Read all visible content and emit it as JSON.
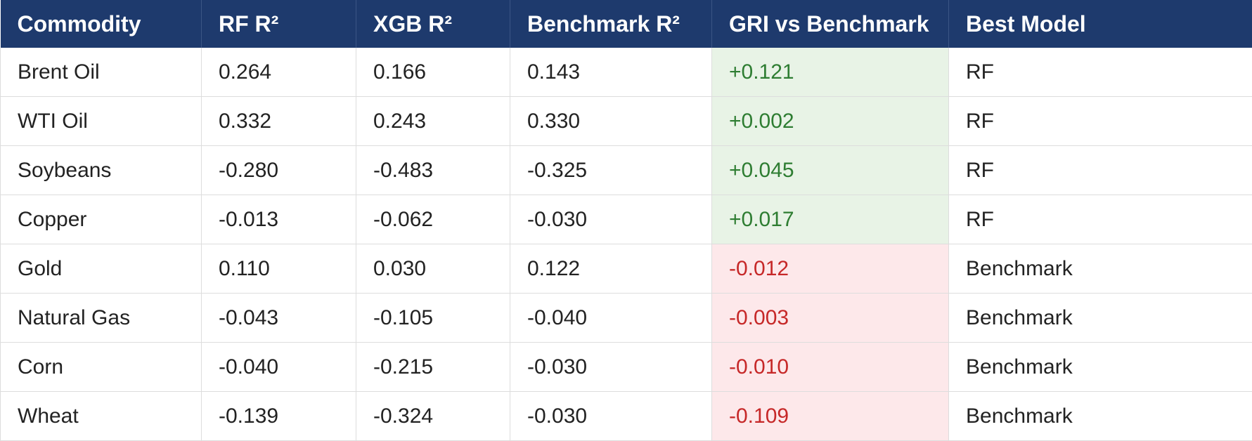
{
  "table": {
    "headers": [
      "Commodity",
      "RF R²",
      "XGB R²",
      "Benchmark R²",
      "GRI vs Benchmark",
      "Best Model"
    ],
    "rows": [
      {
        "commodity": "Brent Oil",
        "rf": "0.264",
        "xgb": "0.166",
        "benchmark": "0.143",
        "gri": "+0.121",
        "best": "RF",
        "sign": "pos"
      },
      {
        "commodity": "WTI Oil",
        "rf": "0.332",
        "xgb": "0.243",
        "benchmark": "0.330",
        "gri": "+0.002",
        "best": "RF",
        "sign": "pos"
      },
      {
        "commodity": "Soybeans",
        "rf": "-0.280",
        "xgb": "-0.483",
        "benchmark": "-0.325",
        "gri": "+0.045",
        "best": "RF",
        "sign": "pos"
      },
      {
        "commodity": "Copper",
        "rf": "-0.013",
        "xgb": "-0.062",
        "benchmark": "-0.030",
        "gri": "+0.017",
        "best": "RF",
        "sign": "pos"
      },
      {
        "commodity": "Gold",
        "rf": "0.110",
        "xgb": "0.030",
        "benchmark": "0.122",
        "gri": "-0.012",
        "best": "Benchmark",
        "sign": "neg"
      },
      {
        "commodity": "Natural Gas",
        "rf": "-0.043",
        "xgb": "-0.105",
        "benchmark": "-0.040",
        "gri": "-0.003",
        "best": "Benchmark",
        "sign": "neg"
      },
      {
        "commodity": "Corn",
        "rf": "-0.040",
        "xgb": "-0.215",
        "benchmark": "-0.030",
        "gri": "-0.010",
        "best": "Benchmark",
        "sign": "neg"
      },
      {
        "commodity": "Wheat",
        "rf": "-0.139",
        "xgb": "-0.324",
        "benchmark": "-0.030",
        "gri": "-0.109",
        "best": "Benchmark",
        "sign": "neg"
      }
    ]
  },
  "colors": {
    "header_bg": "#1e3a6d",
    "header_text": "#ffffff",
    "positive_bg": "#e8f3e6",
    "positive_text": "#2e7d32",
    "negative_bg": "#fde8ea",
    "negative_text": "#c62828"
  }
}
